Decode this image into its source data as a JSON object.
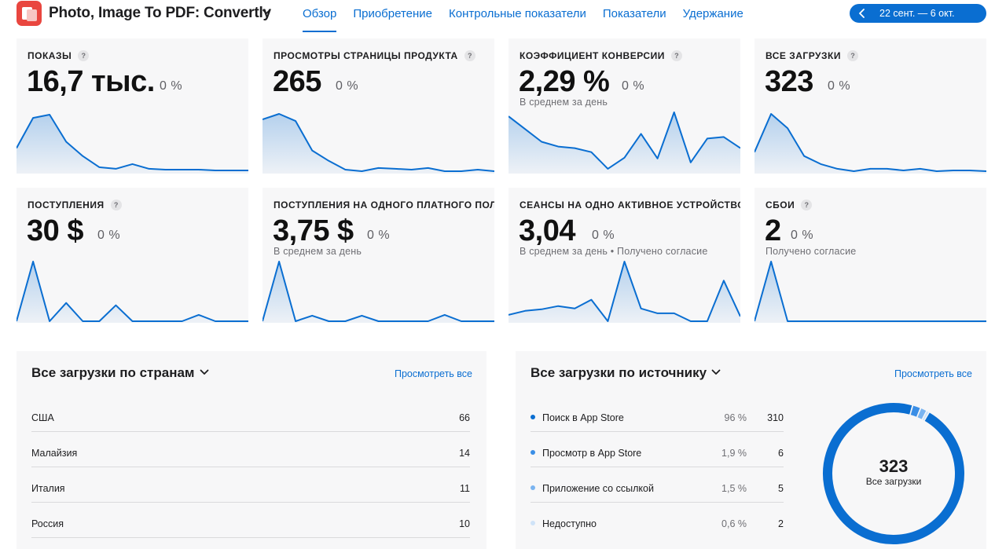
{
  "app": {
    "title": "Photo, Image To PDF: Convertly",
    "icon": "app-logo-icon",
    "accent": "#0a6ed1"
  },
  "nav": {
    "tabs": [
      {
        "label": "Обзор",
        "active": true
      },
      {
        "label": "Приобретение",
        "active": false
      },
      {
        "label": "Контрольные показатели",
        "active": false
      },
      {
        "label": "Показатели",
        "active": false
      },
      {
        "label": "Удержание",
        "active": false
      }
    ]
  },
  "date_range": {
    "label": "22 сент. — 6 окт."
  },
  "help_glyph": "?",
  "metrics": [
    {
      "label": "ПОКАЗЫ",
      "value": "16,7 тыс.",
      "change": "0 %",
      "sub": "",
      "trend": [
        30,
        68,
        72,
        38,
        20,
        6,
        4,
        10,
        4,
        3,
        3,
        3,
        2,
        2,
        2
      ]
    },
    {
      "label": "ПРОСМОТРЫ СТРАНИЦЫ ПРОДУКТА",
      "value": "265",
      "change": "0 %",
      "sub": "",
      "trend": [
        66,
        73,
        64,
        27,
        14,
        3,
        1,
        5,
        4,
        3,
        5,
        1,
        1,
        3,
        1
      ]
    },
    {
      "label": "КОЭФФИЦИЕНТ КОНВЕРСИИ",
      "value": "2,29 %",
      "change": "0 %",
      "sub": "В среднем за день",
      "trend": [
        70,
        54,
        38,
        32,
        30,
        25,
        4,
        18,
        48,
        17,
        75,
        12,
        42,
        44,
        30
      ]
    },
    {
      "label": "ВСЕ ЗАГРУЗКИ",
      "value": "323",
      "change": "0 %",
      "sub": "",
      "trend": [
        25,
        73,
        55,
        20,
        10,
        4,
        1,
        4,
        4,
        2,
        4,
        1,
        2,
        2,
        1
      ]
    },
    {
      "label": "ПОСТУПЛЕНИЯ",
      "value": "30 $",
      "change": "0 %",
      "sub": "",
      "trend": [
        0,
        75,
        0,
        23,
        0,
        0,
        20,
        0,
        0,
        0,
        0,
        8,
        0,
        0,
        0
      ]
    },
    {
      "label": "ПОСТУПЛЕНИЯ НА ОДНОГО ПЛАТНОГО ПОЛЬЗОВАТЕЛЯ",
      "value": "3,75 $",
      "change": "0 %",
      "sub": "В среднем за день",
      "trend": [
        0,
        75,
        0,
        7,
        0,
        0,
        7,
        0,
        0,
        0,
        0,
        8,
        0,
        0,
        0
      ]
    },
    {
      "label": "СЕАНСЫ НА ОДНО АКТИВНОЕ УСТРОЙСТВО",
      "value": "3,04",
      "change": "0 %",
      "sub": "В среднем за день • Получено согласие",
      "trend": [
        8,
        13,
        15,
        19,
        16,
        27,
        0,
        75,
        16,
        10,
        10,
        0,
        0,
        51,
        6
      ]
    },
    {
      "label": "СБОИ",
      "value": "2",
      "change": "0 %",
      "sub": "Получено согласие",
      "trend": [
        0,
        75,
        0,
        0,
        0,
        0,
        0,
        0,
        0,
        0,
        0,
        0,
        0,
        0,
        0
      ]
    }
  ],
  "countries": {
    "title": "Все загрузки по странам",
    "view_all": "Просмотреть все",
    "rows": [
      {
        "name": "США",
        "value": "66"
      },
      {
        "name": "Малайзия",
        "value": "14"
      },
      {
        "name": "Италия",
        "value": "11"
      },
      {
        "name": "Россия",
        "value": "10"
      }
    ]
  },
  "sources": {
    "title": "Все загрузки по источнику",
    "view_all": "Просмотреть все",
    "rows": [
      {
        "name": "Поиск в App Store",
        "pct": "96 %",
        "value": "310",
        "share": 96,
        "color": "#0a6ed1"
      },
      {
        "name": "Просмотр в App Store",
        "pct": "1,9 %",
        "value": "6",
        "share": 1.9,
        "color": "#3a8ee6"
      },
      {
        "name": "Приложение со ссылкой",
        "pct": "1,5 %",
        "value": "5",
        "share": 1.5,
        "color": "#7ab4f0"
      },
      {
        "name": "Недоступно",
        "pct": "0,6 %",
        "value": "2",
        "share": 0.6,
        "color": "#cfe3f8"
      }
    ],
    "total": "323",
    "total_label": "Все загрузки"
  }
}
